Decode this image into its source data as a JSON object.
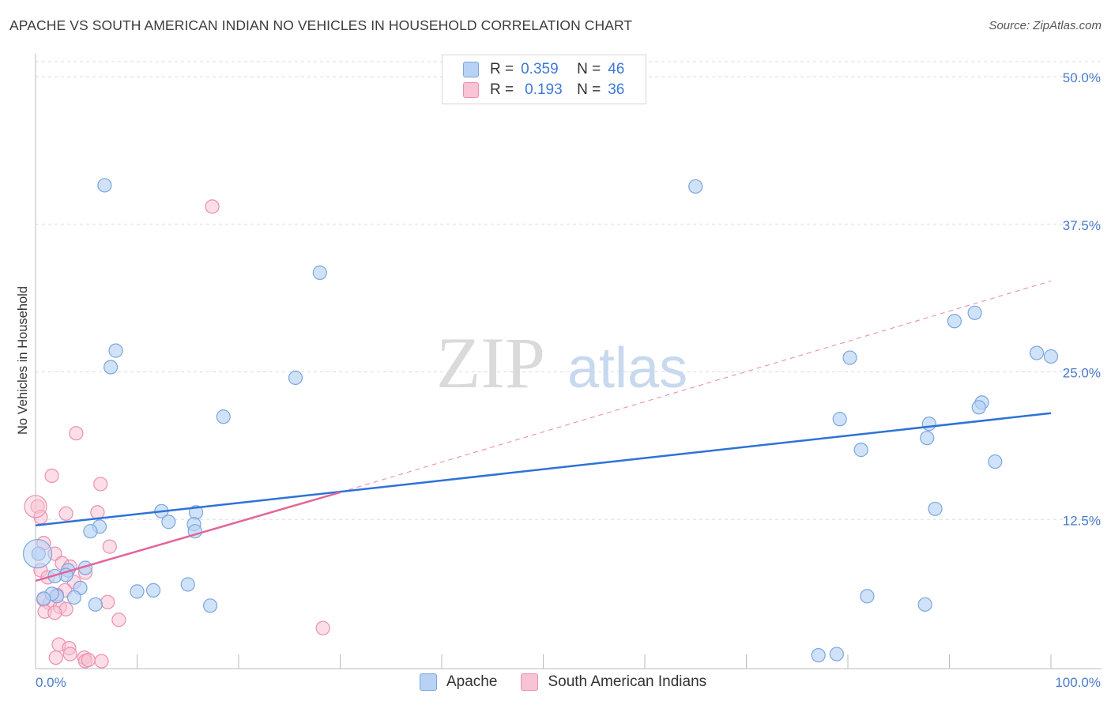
{
  "header": {
    "title": "APACHE VS SOUTH AMERICAN INDIAN NO VEHICLES IN HOUSEHOLD CORRELATION CHART",
    "source": "Source: ZipAtlas.com"
  },
  "legend": {
    "r_label": "R =",
    "n_label": "N =",
    "rows": [
      {
        "r": "0.359",
        "n": "46"
      },
      {
        "r": "0.193",
        "n": "36"
      }
    ]
  },
  "watermark": {
    "zip": "ZIP",
    "atlas": "atlas"
  },
  "colors": {
    "apache_fill": "#b7d2f5",
    "apache_stroke": "#7aa6e0",
    "apache_line": "#2f72d6",
    "sai_fill": "#f8c3d3",
    "sai_stroke": "#eb8fae",
    "sai_line": "#e2669a",
    "tick_text": "#4a7cc9",
    "grid": "#dddddd"
  },
  "chart_data": {
    "type": "scatter",
    "title": "APACHE VS SOUTH AMERICAN INDIAN NO VEHICLES IN HOUSEHOLD CORRELATION CHART",
    "xlabel": "",
    "ylabel": "No Vehicles in Household",
    "xlim": [
      0,
      100
    ],
    "ylim": [
      0,
      52
    ],
    "x_tick_labels": [
      "0.0%",
      "100.0%"
    ],
    "y_ticks": [
      12.5,
      25.0,
      37.5,
      50.0
    ],
    "y_tick_labels": [
      "12.5%",
      "25.0%",
      "37.5%",
      "50.0%"
    ],
    "grid": true,
    "legend_position": "top-center",
    "series": [
      {
        "name": "Apache",
        "r": 0.359,
        "n": 46,
        "points": [
          [
            6.8,
            40.8
          ],
          [
            65.0,
            40.7
          ],
          [
            28.0,
            33.4
          ],
          [
            7.9,
            26.8
          ],
          [
            7.4,
            25.4
          ],
          [
            25.6,
            24.5
          ],
          [
            18.5,
            21.2
          ],
          [
            79.2,
            21.0
          ],
          [
            80.2,
            26.2
          ],
          [
            90.5,
            29.3
          ],
          [
            92.5,
            30.0
          ],
          [
            98.6,
            26.6
          ],
          [
            100.0,
            26.3
          ],
          [
            93.2,
            22.4
          ],
          [
            92.9,
            22.0
          ],
          [
            88.0,
            20.6
          ],
          [
            87.8,
            19.4
          ],
          [
            81.3,
            18.4
          ],
          [
            94.5,
            17.4
          ],
          [
            88.6,
            13.4
          ],
          [
            12.4,
            13.2
          ],
          [
            15.8,
            13.1
          ],
          [
            13.1,
            12.3
          ],
          [
            15.6,
            12.1
          ],
          [
            6.3,
            11.9
          ],
          [
            5.4,
            11.5
          ],
          [
            15.7,
            11.5
          ],
          [
            0.3,
            9.6
          ],
          [
            4.9,
            8.4
          ],
          [
            3.2,
            8.2
          ],
          [
            3.0,
            7.8
          ],
          [
            1.9,
            7.7
          ],
          [
            4.4,
            6.7
          ],
          [
            10.0,
            6.4
          ],
          [
            11.6,
            6.5
          ],
          [
            15.0,
            7.0
          ],
          [
            2.1,
            6.0
          ],
          [
            1.6,
            6.2
          ],
          [
            3.8,
            5.9
          ],
          [
            0.8,
            5.8
          ],
          [
            5.9,
            5.3
          ],
          [
            17.2,
            5.2
          ],
          [
            81.9,
            6.0
          ],
          [
            87.6,
            5.3
          ],
          [
            77.1,
            1.0
          ],
          [
            78.9,
            1.1
          ]
        ],
        "trendline": {
          "x": [
            0,
            100
          ],
          "y": [
            12.0,
            21.5
          ]
        }
      },
      {
        "name": "South American Indians",
        "r": 0.193,
        "n": 36,
        "points": [
          [
            17.4,
            39.0
          ],
          [
            4.0,
            19.8
          ],
          [
            1.6,
            16.2
          ],
          [
            6.4,
            15.5
          ],
          [
            0.2,
            13.6
          ],
          [
            6.1,
            13.1
          ],
          [
            3.0,
            13.0
          ],
          [
            0.5,
            12.7
          ],
          [
            0.8,
            10.5
          ],
          [
            7.3,
            10.2
          ],
          [
            1.9,
            9.6
          ],
          [
            2.6,
            8.8
          ],
          [
            3.4,
            8.5
          ],
          [
            0.5,
            8.2
          ],
          [
            4.9,
            8.0
          ],
          [
            1.2,
            7.6
          ],
          [
            3.8,
            7.2
          ],
          [
            2.9,
            6.5
          ],
          [
            2.1,
            6.1
          ],
          [
            0.8,
            5.7
          ],
          [
            1.4,
            5.4
          ],
          [
            7.1,
            5.5
          ],
          [
            2.4,
            5.1
          ],
          [
            3.0,
            4.9
          ],
          [
            0.9,
            4.7
          ],
          [
            1.9,
            4.6
          ],
          [
            8.2,
            4.0
          ],
          [
            28.3,
            3.3
          ],
          [
            2.3,
            1.9
          ],
          [
            3.3,
            1.6
          ],
          [
            3.4,
            1.1
          ],
          [
            4.8,
            0.8
          ],
          [
            4.9,
            0.5
          ],
          [
            5.2,
            0.6
          ],
          [
            6.5,
            0.5
          ],
          [
            2.0,
            0.8
          ]
        ],
        "trendline": {
          "x": [
            0,
            30
          ],
          "y": [
            7.3,
            14.8
          ]
        },
        "trendline_extension": {
          "x": [
            30,
            100
          ],
          "y": [
            14.8,
            32.7
          ]
        }
      }
    ]
  },
  "bottom_legend": [
    "Apache",
    "South American Indians"
  ]
}
